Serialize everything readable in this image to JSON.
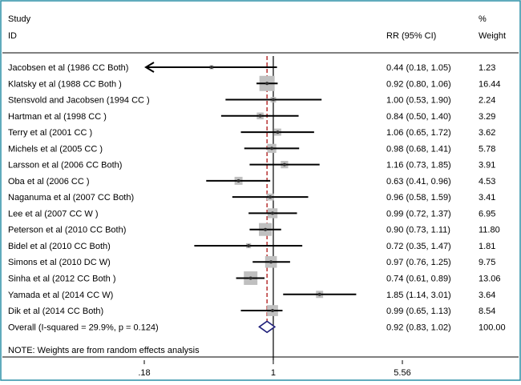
{
  "chart_data": {
    "type": "forest",
    "title": "",
    "header": {
      "study_line1": "Study",
      "study_line2": "ID",
      "rr_label": "RR (95% CI)",
      "weight_line1": "%",
      "weight_line2": "Weight"
    },
    "x_scale": "log",
    "xlim": [
      0.18,
      5.56
    ],
    "xticks": [
      0.18,
      1,
      5.56
    ],
    "xtick_labels": [
      ".18",
      "1",
      "5.56"
    ],
    "reference_line": 1,
    "pooled_estimate_line": 0.92,
    "studies": [
      {
        "label": "Jacobsen et al  (1986 CC Both)",
        "rr": 0.44,
        "lo": 0.18,
        "hi": 1.05,
        "ci_text": "0.44 (0.18, 1.05)",
        "weight": 1.23,
        "weight_text": "1.23",
        "arrow_left": true
      },
      {
        "label": "Klatsky et al (1988 CC Both )",
        "rr": 0.92,
        "lo": 0.8,
        "hi": 1.06,
        "ci_text": "0.92 (0.80, 1.06)",
        "weight": 16.44,
        "weight_text": "16.44"
      },
      {
        "label": "Stensvold and Jacobsen (1994 CC )",
        "rr": 1.0,
        "lo": 0.53,
        "hi": 1.9,
        "ci_text": "1.00 (0.53, 1.90)",
        "weight": 2.24,
        "weight_text": "2.24"
      },
      {
        "label": "Hartman et al (1998 CC )",
        "rr": 0.84,
        "lo": 0.5,
        "hi": 1.4,
        "ci_text": "0.84 (0.50, 1.40)",
        "weight": 3.29,
        "weight_text": "3.29"
      },
      {
        "label": "Terry et al (2001 CC )",
        "rr": 1.06,
        "lo": 0.65,
        "hi": 1.72,
        "ci_text": "1.06 (0.65, 1.72)",
        "weight": 3.62,
        "weight_text": "3.62"
      },
      {
        "label": "Michels et al (2005 CC )",
        "rr": 0.98,
        "lo": 0.68,
        "hi": 1.41,
        "ci_text": "0.98 (0.68, 1.41)",
        "weight": 5.78,
        "weight_text": "5.78"
      },
      {
        "label": "Larsson et al (2006 CC Both)",
        "rr": 1.16,
        "lo": 0.73,
        "hi": 1.85,
        "ci_text": "1.16 (0.73, 1.85)",
        "weight": 3.91,
        "weight_text": "3.91"
      },
      {
        "label": "Oba et al  (2006 CC )",
        "rr": 0.63,
        "lo": 0.41,
        "hi": 0.96,
        "ci_text": "0.63 (0.41, 0.96)",
        "weight": 4.53,
        "weight_text": "4.53"
      },
      {
        "label": "Naganuma et al (2007 CC Both)",
        "rr": 0.96,
        "lo": 0.58,
        "hi": 1.59,
        "ci_text": "0.96 (0.58, 1.59)",
        "weight": 3.41,
        "weight_text": "3.41"
      },
      {
        "label": "Lee et al  (2007 CC  W )",
        "rr": 0.99,
        "lo": 0.72,
        "hi": 1.37,
        "ci_text": "0.99 (0.72, 1.37)",
        "weight": 6.95,
        "weight_text": "6.95"
      },
      {
        "label": "Peterson et al (2010 CC Both)",
        "rr": 0.9,
        "lo": 0.73,
        "hi": 1.11,
        "ci_text": "0.90 (0.73, 1.11)",
        "weight": 11.8,
        "weight_text": "11.80"
      },
      {
        "label": "Bidel et al  (2010 CC Both)",
        "rr": 0.72,
        "lo": 0.35,
        "hi": 1.47,
        "ci_text": "0.72 (0.35, 1.47)",
        "weight": 1.81,
        "weight_text": "1.81"
      },
      {
        "label": "Simons et al (2010 DC W)",
        "rr": 0.97,
        "lo": 0.76,
        "hi": 1.25,
        "ci_text": "0.97 (0.76, 1.25)",
        "weight": 9.75,
        "weight_text": "9.75"
      },
      {
        "label": "Sinha et al  (2012 CC Both )",
        "rr": 0.74,
        "lo": 0.61,
        "hi": 0.89,
        "ci_text": "0.74 (0.61, 0.89)",
        "weight": 13.06,
        "weight_text": "13.06"
      },
      {
        "label": "Yamada et al  (2014 CC W)",
        "rr": 1.85,
        "lo": 1.14,
        "hi": 3.01,
        "ci_text": "1.85 (1.14, 3.01)",
        "weight": 3.64,
        "weight_text": "3.64"
      },
      {
        "label": "Dik et al  (2014 CC Both)",
        "rr": 0.99,
        "lo": 0.65,
        "hi": 1.13,
        "ci_text": "0.99 (0.65, 1.13)",
        "weight": 8.54,
        "weight_text": "8.54"
      }
    ],
    "overall": {
      "label": "Overall  (I-squared = 29.9%, p = 0.124)",
      "rr": 0.92,
      "lo": 0.83,
      "hi": 1.02,
      "ci_text": "0.92 (0.83, 1.02)",
      "weight": 100.0,
      "weight_text": "100.00"
    },
    "note": "NOTE: Weights are from random effects analysis",
    "colors": {
      "border": "#2b8fa6",
      "marker_box": "#c0c0c0",
      "line": "#000000",
      "ref_dash": "#b22222",
      "diamond": "#1f1f7a"
    }
  }
}
